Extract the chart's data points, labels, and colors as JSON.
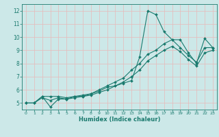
{
  "title": "",
  "xlabel": "Humidex (Indice chaleur)",
  "ylabel": "",
  "bg_color": "#cce8e8",
  "grid_color": "#e8b8b8",
  "line_color": "#1a7a6e",
  "marker": "D",
  "markersize": 2.0,
  "linewidth": 0.8,
  "xlim": [
    -0.5,
    23.5
  ],
  "ylim": [
    4.5,
    12.5
  ],
  "xticks": [
    0,
    1,
    2,
    3,
    4,
    5,
    6,
    7,
    8,
    9,
    10,
    11,
    12,
    13,
    14,
    15,
    16,
    17,
    18,
    19,
    20,
    21,
    22,
    23
  ],
  "yticks": [
    5,
    6,
    7,
    8,
    9,
    10,
    11,
    12
  ],
  "lines": [
    {
      "x": [
        0,
        1,
        2,
        3,
        4,
        5,
        6,
        7,
        8,
        9,
        10,
        11,
        12,
        13,
        14,
        15,
        16,
        17,
        18,
        19,
        20,
        21,
        22,
        23
      ],
      "y": [
        5.0,
        5.0,
        5.5,
        4.7,
        5.3,
        5.3,
        5.5,
        5.5,
        5.7,
        5.9,
        6.2,
        6.3,
        6.5,
        6.7,
        8.5,
        12.0,
        11.7,
        10.4,
        9.8,
        9.8,
        8.8,
        8.0,
        9.9,
        9.2
      ]
    },
    {
      "x": [
        0,
        1,
        2,
        3,
        4,
        5,
        6,
        7,
        8,
        9,
        10,
        11,
        12,
        13,
        14,
        15,
        16,
        17,
        18,
        19,
        20,
        21,
        22,
        23
      ],
      "y": [
        5.0,
        5.0,
        5.5,
        5.5,
        5.5,
        5.4,
        5.5,
        5.6,
        5.7,
        6.0,
        6.3,
        6.6,
        6.9,
        7.5,
        8.0,
        8.7,
        9.0,
        9.5,
        9.8,
        9.2,
        8.6,
        8.1,
        9.2,
        9.2
      ]
    },
    {
      "x": [
        0,
        1,
        2,
        3,
        4,
        5,
        6,
        7,
        8,
        9,
        10,
        11,
        12,
        13,
        14,
        15,
        16,
        17,
        18,
        19,
        20,
        21,
        22,
        23
      ],
      "y": [
        5.0,
        5.0,
        5.4,
        5.2,
        5.4,
        5.3,
        5.4,
        5.5,
        5.6,
        5.8,
        6.0,
        6.3,
        6.6,
        7.0,
        7.5,
        8.2,
        8.6,
        9.0,
        9.3,
        8.9,
        8.3,
        7.8,
        8.8,
        9.0
      ]
    }
  ]
}
